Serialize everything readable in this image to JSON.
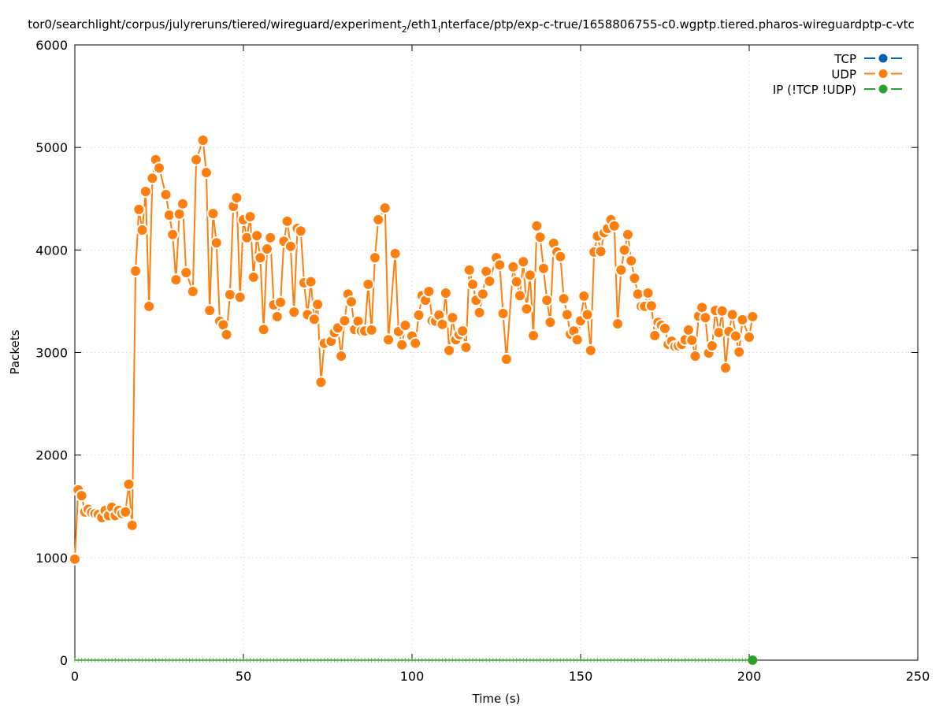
{
  "chart_data": {
    "type": "line",
    "title": "tor0/searchlight/corpus/julyreruns/tiered/wireguard/experiment_2/eth1_interface/ptp/exp-c-true/1658806755-c0.wgptp.tiered.pharos-wireguardptp-c-vtc",
    "title_parts": {
      "a": "tor0/searchlight/corpus/julyreruns/tiered/wireguard/experiment",
      "sub1": "2",
      "b": "/eth1",
      "sub2": "i",
      "c": "nterface/ptp/exp-c-true/1658806755-c0.wgptp.tiered.pharos-wireguardptp-c-vtc"
    },
    "xlabel": "Time (s)",
    "ylabel": "Packets",
    "xlim": [
      0,
      250
    ],
    "ylim": [
      0,
      6000
    ],
    "xticks": [
      "0",
      "50",
      "100",
      "150",
      "200",
      "250"
    ],
    "yticks": [
      "0",
      "1000",
      "2000",
      "3000",
      "4000",
      "5000",
      "6000"
    ],
    "grid": true,
    "legend_position": "top-right",
    "series": [
      {
        "name": "TCP",
        "color": "#0060ad",
        "points": []
      },
      {
        "name": "UDP",
        "color": "#ff7f0e",
        "points": [
          [
            0,
            985
          ],
          [
            1,
            1660
          ],
          [
            2,
            1605
          ],
          [
            3,
            1445
          ],
          [
            4,
            1470
          ],
          [
            5,
            1440
          ],
          [
            6,
            1430
          ],
          [
            7,
            1420
          ],
          [
            8,
            1390
          ],
          [
            9,
            1460
          ],
          [
            10,
            1410
          ],
          [
            11,
            1490
          ],
          [
            12,
            1410
          ],
          [
            13,
            1460
          ],
          [
            14,
            1430
          ],
          [
            15,
            1445
          ],
          [
            16,
            1715
          ],
          [
            17,
            1315
          ],
          [
            18,
            3795
          ],
          [
            19,
            4395
          ],
          [
            20,
            4195
          ],
          [
            21,
            4570
          ],
          [
            22,
            3450
          ],
          [
            23,
            4700
          ],
          [
            24,
            4880
          ],
          [
            25,
            4800
          ],
          [
            27,
            4540
          ],
          [
            28,
            4340
          ],
          [
            29,
            4150
          ],
          [
            30,
            3710
          ],
          [
            31,
            4350
          ],
          [
            32,
            4450
          ],
          [
            33,
            3780
          ],
          [
            35,
            3595
          ],
          [
            36,
            4880
          ],
          [
            38,
            5070
          ],
          [
            39,
            4755
          ],
          [
            40,
            3410
          ],
          [
            41,
            4355
          ],
          [
            42,
            4070
          ],
          [
            43,
            3305
          ],
          [
            44,
            3270
          ],
          [
            45,
            3175
          ],
          [
            46,
            3565
          ],
          [
            47,
            4425
          ],
          [
            48,
            4510
          ],
          [
            49,
            3540
          ],
          [
            50,
            4295
          ],
          [
            51,
            4120
          ],
          [
            52,
            4325
          ],
          [
            53,
            3735
          ],
          [
            54,
            4140
          ],
          [
            55,
            3925
          ],
          [
            56,
            3225
          ],
          [
            57,
            4010
          ],
          [
            58,
            4120
          ],
          [
            59,
            3465
          ],
          [
            60,
            3350
          ],
          [
            61,
            3490
          ],
          [
            62,
            4085
          ],
          [
            63,
            4280
          ],
          [
            64,
            4035
          ],
          [
            65,
            3395
          ],
          [
            66,
            4210
          ],
          [
            67,
            4185
          ],
          [
            68,
            3680
          ],
          [
            69,
            3370
          ],
          [
            70,
            3690
          ],
          [
            71,
            3325
          ],
          [
            72,
            3470
          ],
          [
            73,
            2710
          ],
          [
            74,
            3090
          ],
          [
            76,
            3110
          ],
          [
            77,
            3195
          ],
          [
            78,
            3240
          ],
          [
            79,
            2965
          ],
          [
            80,
            3310
          ],
          [
            81,
            3570
          ],
          [
            82,
            3495
          ],
          [
            83,
            3225
          ],
          [
            84,
            3305
          ],
          [
            85,
            3210
          ],
          [
            86,
            3210
          ],
          [
            87,
            3665
          ],
          [
            88,
            3220
          ],
          [
            89,
            3925
          ],
          [
            90,
            4295
          ],
          [
            92,
            4410
          ],
          [
            93,
            3125
          ],
          [
            95,
            3965
          ],
          [
            96,
            3205
          ],
          [
            97,
            3075
          ],
          [
            98,
            3265
          ],
          [
            100,
            3160
          ],
          [
            101,
            3090
          ],
          [
            102,
            3365
          ],
          [
            103,
            3555
          ],
          [
            104,
            3510
          ],
          [
            105,
            3595
          ],
          [
            106,
            3310
          ],
          [
            107,
            3305
          ],
          [
            108,
            3365
          ],
          [
            109,
            3275
          ],
          [
            110,
            3580
          ],
          [
            111,
            3020
          ],
          [
            112,
            3340
          ],
          [
            113,
            3125
          ],
          [
            114,
            3175
          ],
          [
            115,
            3210
          ],
          [
            116,
            3050
          ],
          [
            117,
            3805
          ],
          [
            118,
            3665
          ],
          [
            119,
            3510
          ],
          [
            120,
            3390
          ],
          [
            121,
            3570
          ],
          [
            122,
            3790
          ],
          [
            123,
            3695
          ],
          [
            125,
            3925
          ],
          [
            126,
            3855
          ],
          [
            127,
            3380
          ],
          [
            128,
            2935
          ],
          [
            130,
            3835
          ],
          [
            131,
            3690
          ],
          [
            132,
            3555
          ],
          [
            133,
            3885
          ],
          [
            134,
            3425
          ],
          [
            135,
            3755
          ],
          [
            136,
            3165
          ],
          [
            137,
            4235
          ],
          [
            138,
            4125
          ],
          [
            139,
            3820
          ],
          [
            140,
            3510
          ],
          [
            141,
            3295
          ],
          [
            142,
            4065
          ],
          [
            143,
            3980
          ],
          [
            144,
            3935
          ],
          [
            145,
            3525
          ],
          [
            146,
            3370
          ],
          [
            147,
            3180
          ],
          [
            148,
            3210
          ],
          [
            149,
            3125
          ],
          [
            150,
            3310
          ],
          [
            151,
            3550
          ],
          [
            152,
            3370
          ],
          [
            153,
            3020
          ],
          [
            154,
            3980
          ],
          [
            155,
            4135
          ],
          [
            156,
            3985
          ],
          [
            157,
            4170
          ],
          [
            158,
            4210
          ],
          [
            159,
            4295
          ],
          [
            160,
            4235
          ],
          [
            161,
            3280
          ],
          [
            162,
            3805
          ],
          [
            163,
            4000
          ],
          [
            164,
            4150
          ],
          [
            165,
            3895
          ],
          [
            166,
            3725
          ],
          [
            167,
            3570
          ],
          [
            168,
            3450
          ],
          [
            169,
            3450
          ],
          [
            170,
            3580
          ],
          [
            171,
            3455
          ],
          [
            172,
            3165
          ],
          [
            173,
            3295
          ],
          [
            174,
            3265
          ],
          [
            175,
            3235
          ],
          [
            176,
            3080
          ],
          [
            177,
            3110
          ],
          [
            178,
            3060
          ],
          [
            179,
            3065
          ],
          [
            180,
            3080
          ],
          [
            181,
            3125
          ],
          [
            182,
            3220
          ],
          [
            183,
            3120
          ],
          [
            184,
            2965
          ],
          [
            185,
            3355
          ],
          [
            186,
            3440
          ],
          [
            187,
            3340
          ],
          [
            188,
            2995
          ],
          [
            189,
            3065
          ],
          [
            190,
            3410
          ],
          [
            191,
            3195
          ],
          [
            192,
            3405
          ],
          [
            193,
            2850
          ],
          [
            194,
            3205
          ],
          [
            195,
            3370
          ],
          [
            196,
            3160
          ],
          [
            197,
            3005
          ],
          [
            198,
            3320
          ],
          [
            200,
            3150
          ],
          [
            201,
            3350
          ]
        ]
      },
      {
        "name": "IP (!TCP  !UDP)",
        "color": "#2ca02c",
        "constant_value": 0,
        "x_start": 0,
        "x_end": 201
      }
    ]
  }
}
